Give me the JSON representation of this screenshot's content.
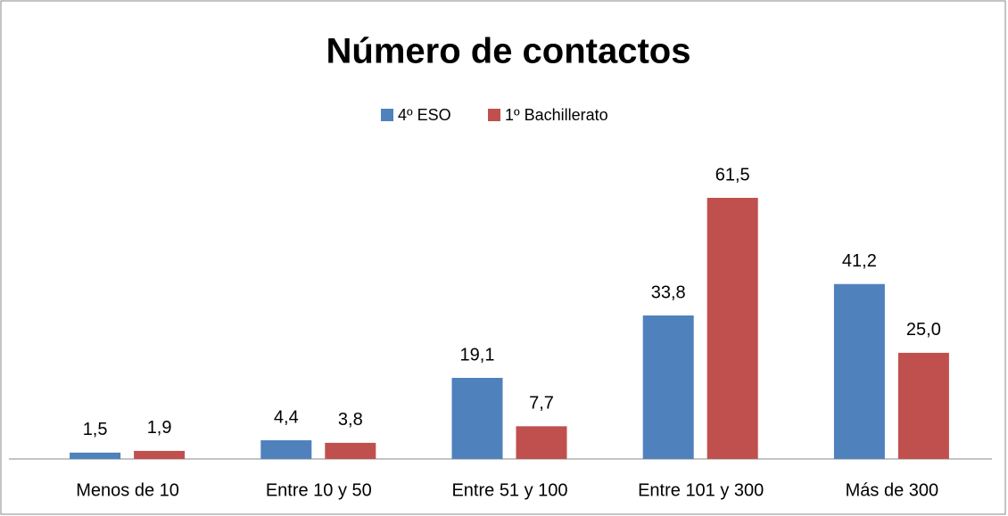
{
  "chart_data": {
    "type": "bar",
    "title": "Número de contactos",
    "categories": [
      "Menos de 10",
      "Entre 10 y 50",
      "Entre 51 y 100",
      "Entre 101 y 300",
      "Más de 300"
    ],
    "series": [
      {
        "name": "4º ESO",
        "color": "#4f81bd",
        "values": [
          1.5,
          4.4,
          19.1,
          33.8,
          41.2
        ],
        "value_labels": [
          "1,5",
          "4,4",
          "19,1",
          "33,8",
          "41,2"
        ]
      },
      {
        "name": "1º Bachillerato",
        "color": "#c0504d",
        "values": [
          1.9,
          3.8,
          7.7,
          61.5,
          25.0
        ],
        "value_labels": [
          "1,9",
          "3,8",
          "7,7",
          "61,5",
          "25,0"
        ]
      }
    ],
    "legend": "top"
  }
}
